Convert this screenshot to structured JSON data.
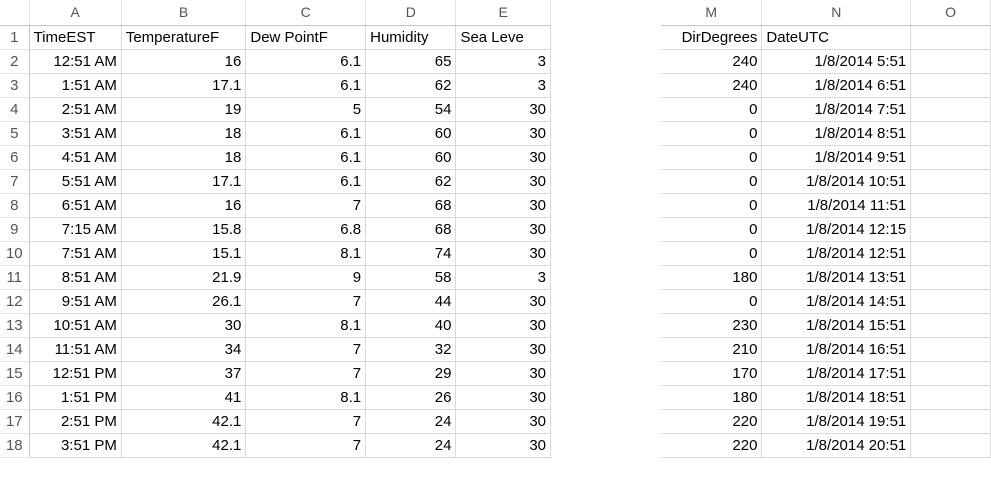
{
  "left": {
    "columns": [
      "A",
      "B",
      "C",
      "D",
      "E"
    ],
    "row_numbers": [
      "1",
      "2",
      "3",
      "4",
      "5",
      "6",
      "7",
      "8",
      "9",
      "10",
      "11",
      "12",
      "13",
      "14",
      "15",
      "16",
      "17",
      "18"
    ],
    "header_row": [
      "TimeEST",
      "TemperatureF",
      "Dew PointF",
      "Humidity",
      "Sea Leve"
    ],
    "rows": [
      [
        "12:51 AM",
        "16",
        "6.1",
        "65",
        "3"
      ],
      [
        "1:51 AM",
        "17.1",
        "6.1",
        "62",
        "3"
      ],
      [
        "2:51 AM",
        "19",
        "5",
        "54",
        "30"
      ],
      [
        "3:51 AM",
        "18",
        "6.1",
        "60",
        "30"
      ],
      [
        "4:51 AM",
        "18",
        "6.1",
        "60",
        "30"
      ],
      [
        "5:51 AM",
        "17.1",
        "6.1",
        "62",
        "30"
      ],
      [
        "6:51 AM",
        "16",
        "7",
        "68",
        "30"
      ],
      [
        "7:15 AM",
        "15.8",
        "6.8",
        "68",
        "30"
      ],
      [
        "7:51 AM",
        "15.1",
        "8.1",
        "74",
        "30"
      ],
      [
        "8:51 AM",
        "21.9",
        "9",
        "58",
        "3"
      ],
      [
        "9:51 AM",
        "26.1",
        "7",
        "44",
        "30"
      ],
      [
        "10:51 AM",
        "30",
        "8.1",
        "40",
        "30"
      ],
      [
        "11:51 AM",
        "34",
        "7",
        "32",
        "30"
      ],
      [
        "12:51 PM",
        "37",
        "7",
        "29",
        "30"
      ],
      [
        "1:51 PM",
        "41",
        "8.1",
        "26",
        "30"
      ],
      [
        "2:51 PM",
        "42.1",
        "7",
        "24",
        "30"
      ],
      [
        "3:51 PM",
        "42.1",
        "7",
        "24",
        "30"
      ]
    ]
  },
  "right": {
    "columns": [
      "M",
      "N",
      "O"
    ],
    "header_row": [
      "DirDegrees",
      "DateUTC",
      ""
    ],
    "rows": [
      [
        "240",
        "1/8/2014 5:51",
        ""
      ],
      [
        "240",
        "1/8/2014 6:51",
        ""
      ],
      [
        "0",
        "1/8/2014 7:51",
        ""
      ],
      [
        "0",
        "1/8/2014 8:51",
        ""
      ],
      [
        "0",
        "1/8/2014 9:51",
        ""
      ],
      [
        "0",
        "1/8/2014 10:51",
        ""
      ],
      [
        "0",
        "1/8/2014 11:51",
        ""
      ],
      [
        "0",
        "1/8/2014 12:15",
        ""
      ],
      [
        "0",
        "1/8/2014 12:51",
        ""
      ],
      [
        "180",
        "1/8/2014 13:51",
        ""
      ],
      [
        "0",
        "1/8/2014 14:51",
        ""
      ],
      [
        "230",
        "1/8/2014 15:51",
        ""
      ],
      [
        "210",
        "1/8/2014 16:51",
        ""
      ],
      [
        "170",
        "1/8/2014 17:51",
        ""
      ],
      [
        "180",
        "1/8/2014 18:51",
        ""
      ],
      [
        "220",
        "1/8/2014 19:51",
        ""
      ],
      [
        "220",
        "1/8/2014 20:51",
        ""
      ]
    ]
  }
}
